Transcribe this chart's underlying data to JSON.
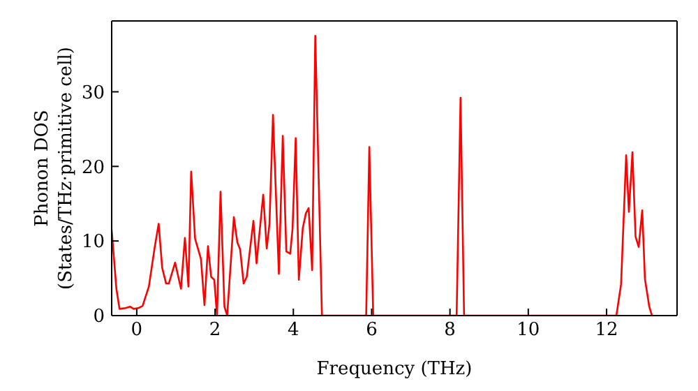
{
  "chart_data": {
    "type": "line",
    "xlabel": "Frequency (THz)",
    "ylabel": "Phonon DOS\n(States/THz·primitive cell)",
    "x": [
      -0.64,
      -0.52,
      -0.44,
      -0.29,
      -0.17,
      -0.08,
      0.04,
      0.15,
      0.31,
      0.46,
      0.56,
      0.65,
      0.75,
      0.82,
      0.98,
      1.13,
      1.23,
      1.32,
      1.39,
      1.49,
      1.64,
      1.73,
      1.82,
      1.9,
      1.98,
      2.05,
      2.14,
      2.24,
      2.31,
      2.48,
      2.57,
      2.64,
      2.73,
      2.81,
      2.98,
      3.06,
      3.23,
      3.32,
      3.39,
      3.48,
      3.63,
      3.73,
      3.82,
      3.92,
      3.98,
      4.06,
      4.14,
      4.24,
      4.32,
      4.39,
      4.48,
      4.56,
      4.73,
      5.86,
      5.94,
      6.04,
      8.17,
      8.27,
      8.36,
      12.25,
      12.37,
      12.5,
      12.57,
      12.66,
      12.74,
      12.82,
      12.91,
      12.98,
      13.09,
      13.16
    ],
    "series": [
      {
        "color": "#ff0000",
        "values": [
          11.5,
          3.6,
          0.9,
          1.0,
          1.2,
          0.9,
          1.0,
          1.3,
          3.9,
          9.2,
          12.3,
          6.4,
          4.3,
          4.3,
          7.1,
          3.6,
          10.4,
          3.9,
          19.3,
          10.3,
          7.6,
          1.4,
          9.3,
          5.2,
          4.8,
          0,
          16.6,
          1.2,
          0,
          13.2,
          9.8,
          8.9,
          4.3,
          5.2,
          12.7,
          7.0,
          16.2,
          9.0,
          12.3,
          26.9,
          5.6,
          24.1,
          8.6,
          8.3,
          11.7,
          23.8,
          4.8,
          11.7,
          13.7,
          14.4,
          6.1,
          37.5,
          0,
          0,
          22.6,
          0,
          0,
          29.2,
          0,
          0,
          4.2,
          21.5,
          13.9,
          21.9,
          10.6,
          9.2,
          14.1,
          4.9,
          1.2,
          0
        ]
      }
    ],
    "xlim": [
      -0.64,
      13.8
    ],
    "ylim": [
      0,
      39.5
    ],
    "xticks": [
      0,
      2,
      4,
      6,
      8,
      10,
      12
    ],
    "yticks": [
      0,
      10,
      20,
      30
    ],
    "grid": false,
    "marker": "none",
    "line_style": "solid"
  }
}
